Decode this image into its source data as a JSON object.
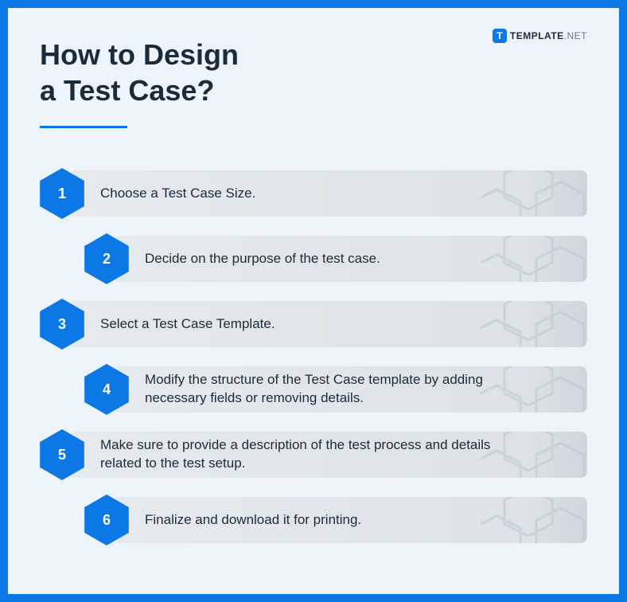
{
  "brand": {
    "badge_letter": "T",
    "name_main": "TEMPLATE",
    "name_suffix": ".NET"
  },
  "title_line1": "How to Design",
  "title_line2": "a Test Case?",
  "colors": {
    "accent": "#0b78e6",
    "card_bg": "#eef4fb",
    "bar_bg_start": "#e6eaef",
    "bar_bg_end": "#d0d6de",
    "text": "#1a2b3c",
    "deco": "#b8c6d4"
  },
  "steps": [
    {
      "num": "1",
      "text": "Choose a Test Case Size.",
      "offset": false
    },
    {
      "num": "2",
      "text": "Decide on the purpose of the test case.",
      "offset": true
    },
    {
      "num": "3",
      "text": "Select a Test Case Template.",
      "offset": false
    },
    {
      "num": "4",
      "text": "Modify the structure of the Test Case template by adding necessary fields or removing details.",
      "offset": true
    },
    {
      "num": "5",
      "text": "Make sure to provide a description of the test process and details related to the test setup.",
      "offset": false
    },
    {
      "num": "6",
      "text": "Finalize and download it for printing.",
      "offset": true
    }
  ]
}
